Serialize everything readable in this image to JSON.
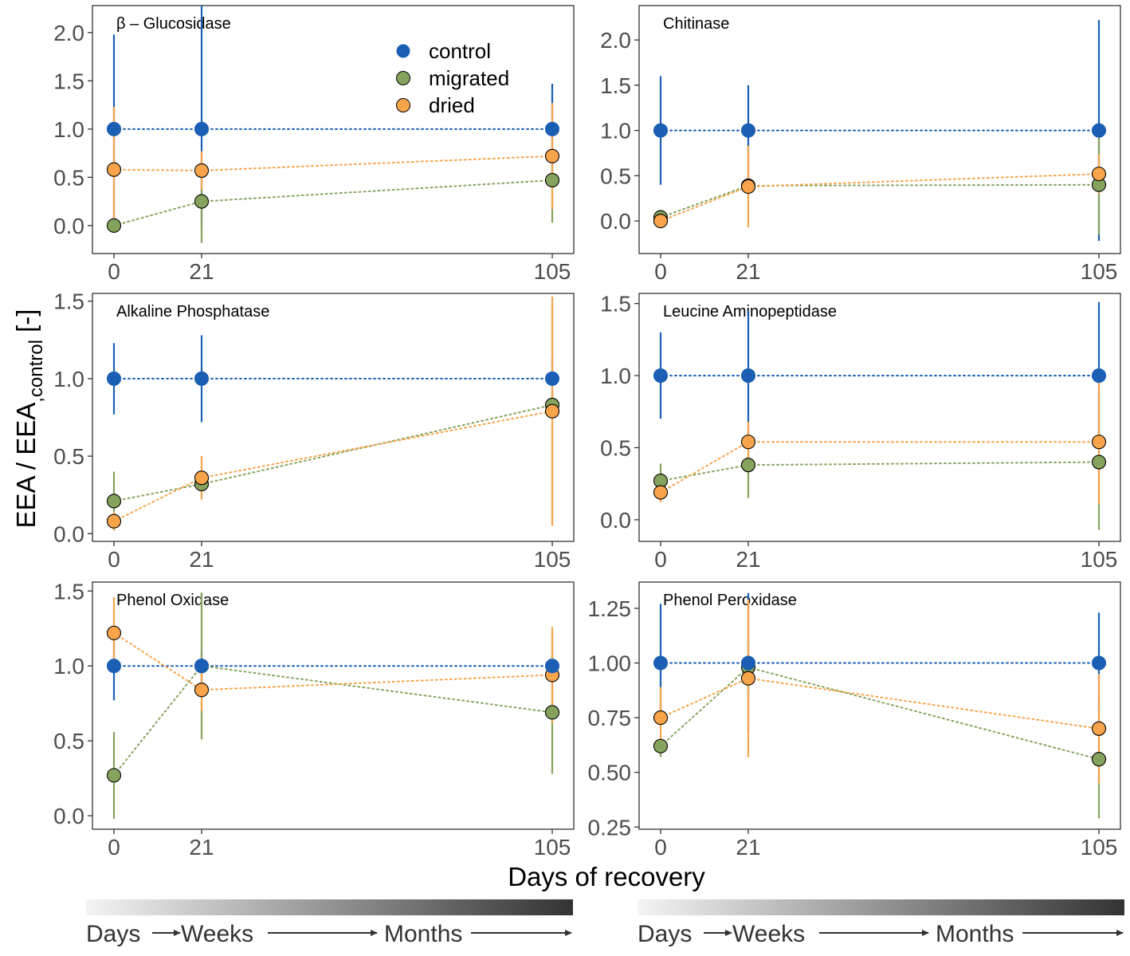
{
  "axes": {
    "xlabel": "Days of recovery",
    "ylabel_main": "EEA / EEA",
    "ylabel_sub": ",control",
    "ylabel_unit": " [-]"
  },
  "legend": {
    "position": "top-right of first panel",
    "items": [
      {
        "key": "control",
        "label": "control",
        "color": "#1a5fb4"
      },
      {
        "key": "migrated",
        "label": "migrated",
        "color": "#86a35d"
      },
      {
        "key": "dried",
        "label": "dried",
        "color": "#f7a44b"
      }
    ]
  },
  "timeline": {
    "days": "Days",
    "weeks": "Weeks",
    "months": "Months"
  },
  "chart_data": [
    {
      "type": "scatter",
      "title": "β – Glucosidase",
      "x": [
        0,
        21,
        105
      ],
      "xticks": [
        "0",
        "21",
        "105"
      ],
      "ylim": [
        -0.29,
        2.28
      ],
      "yticks": [
        0.0,
        0.5,
        1.0,
        1.5,
        2.0
      ],
      "ytick_labels": [
        "0.0",
        "0.5",
        "1.0",
        "1.5",
        "2.0"
      ],
      "series": [
        {
          "name": "control",
          "values": [
            1.0,
            1.0,
            1.0
          ],
          "lower": [
            0.0,
            0.0,
            0.53
          ],
          "upper": [
            1.98,
            2.28,
            1.47
          ]
        },
        {
          "name": "migrated",
          "values": [
            0.0,
            0.25,
            0.47
          ],
          "lower": [
            0.0,
            -0.18,
            0.03
          ],
          "upper": [
            0.0,
            0.65,
            0.9
          ]
        },
        {
          "name": "dried",
          "values": [
            0.58,
            0.57,
            0.72
          ],
          "lower": [
            -0.07,
            0.37,
            0.17
          ],
          "upper": [
            1.23,
            0.77,
            1.27
          ]
        }
      ]
    },
    {
      "type": "scatter",
      "title": "Chitinase",
      "x": [
        0,
        21,
        105
      ],
      "xticks": [
        "0",
        "21",
        "105"
      ],
      "ylim": [
        -0.36,
        2.38
      ],
      "yticks": [
        0.0,
        0.5,
        1.0,
        1.5,
        2.0
      ],
      "ytick_labels": [
        "0.0",
        "0.5",
        "1.0",
        "1.5",
        "2.0"
      ],
      "series": [
        {
          "name": "control",
          "values": [
            1.0,
            1.0,
            1.0
          ],
          "lower": [
            0.4,
            0.5,
            -0.22
          ],
          "upper": [
            1.6,
            1.5,
            2.22
          ]
        },
        {
          "name": "migrated",
          "values": [
            0.04,
            0.39,
            0.4
          ],
          "lower": [
            0.0,
            0.25,
            -0.15
          ],
          "upper": [
            0.08,
            0.53,
            0.95
          ]
        },
        {
          "name": "dried",
          "values": [
            0.0,
            0.38,
            0.52
          ],
          "lower": [
            0.0,
            -0.07,
            0.3
          ],
          "upper": [
            0.0,
            0.83,
            0.74
          ]
        }
      ]
    },
    {
      "type": "scatter",
      "title": "Alkaline Phosphatase",
      "x": [
        0,
        21,
        105
      ],
      "xticks": [
        "0",
        "21",
        "105"
      ],
      "ylim": [
        -0.05,
        1.55
      ],
      "yticks": [
        0.0,
        0.5,
        1.0,
        1.5
      ],
      "ytick_labels": [
        "0.0",
        "0.5",
        "1.0",
        "1.5"
      ],
      "series": [
        {
          "name": "control",
          "values": [
            1.0,
            1.0,
            1.0
          ],
          "lower": [
            0.77,
            0.72,
            0.85
          ],
          "upper": [
            1.23,
            1.28,
            1.15
          ]
        },
        {
          "name": "migrated",
          "values": [
            0.21,
            0.32,
            0.83
          ],
          "lower": [
            0.02,
            0.25,
            0.75
          ],
          "upper": [
            0.4,
            0.39,
            0.91
          ]
        },
        {
          "name": "dried",
          "values": [
            0.08,
            0.36,
            0.79
          ],
          "lower": [
            0.02,
            0.22,
            0.05
          ],
          "upper": [
            0.14,
            0.5,
            1.53
          ]
        }
      ]
    },
    {
      "type": "scatter",
      "title": "Leucine Aminopeptidase",
      "x": [
        0,
        21,
        105
      ],
      "xticks": [
        "0",
        "21",
        "105"
      ],
      "ylim": [
        -0.15,
        1.57
      ],
      "yticks": [
        0.0,
        0.5,
        1.0,
        1.5
      ],
      "ytick_labels": [
        "0.0",
        "0.5",
        "1.0",
        "1.5"
      ],
      "series": [
        {
          "name": "control",
          "values": [
            1.0,
            1.0,
            1.0
          ],
          "lower": [
            0.7,
            0.55,
            0.49
          ],
          "upper": [
            1.3,
            1.45,
            1.51
          ]
        },
        {
          "name": "migrated",
          "values": [
            0.27,
            0.38,
            0.4
          ],
          "lower": [
            0.15,
            0.15,
            -0.07
          ],
          "upper": [
            0.39,
            0.61,
            0.87
          ]
        },
        {
          "name": "dried",
          "values": [
            0.19,
            0.54,
            0.54
          ],
          "lower": [
            0.12,
            0.4,
            0.11
          ],
          "upper": [
            0.26,
            0.68,
            0.97
          ]
        }
      ]
    },
    {
      "type": "scatter",
      "title": "Phenol Oxidase",
      "x": [
        0,
        21,
        105
      ],
      "xticks": [
        "0",
        "21",
        "105"
      ],
      "ylim": [
        -0.09,
        1.56
      ],
      "yticks": [
        0.0,
        0.5,
        1.0,
        1.5
      ],
      "ytick_labels": [
        "0.0",
        "0.5",
        "1.0",
        "1.5"
      ],
      "series": [
        {
          "name": "control",
          "values": [
            1.0,
            1.0,
            1.0
          ],
          "lower": [
            0.77,
            0.9,
            0.93
          ],
          "upper": [
            1.23,
            1.1,
            1.07
          ]
        },
        {
          "name": "migrated",
          "values": [
            0.27,
            1.0,
            0.69
          ],
          "lower": [
            -0.02,
            0.51,
            0.28
          ],
          "upper": [
            0.56,
            1.49,
            1.1
          ]
        },
        {
          "name": "dried",
          "values": [
            1.22,
            0.84,
            0.94
          ],
          "lower": [
            0.98,
            0.7,
            0.62
          ],
          "upper": [
            1.46,
            0.98,
            1.26
          ]
        }
      ]
    },
    {
      "type": "scatter",
      "title": "Phenol Peroxidase",
      "x": [
        0,
        21,
        105
      ],
      "xticks": [
        "0",
        "21",
        "105"
      ],
      "ylim": [
        0.24,
        1.37
      ],
      "yticks": [
        0.25,
        0.5,
        0.75,
        1.0,
        1.25
      ],
      "ytick_labels": [
        "0.25",
        "0.50",
        "0.75",
        "1.00",
        "1.25"
      ],
      "series": [
        {
          "name": "control",
          "values": [
            1.0,
            1.0,
            1.0
          ],
          "lower": [
            0.73,
            0.68,
            0.77
          ],
          "upper": [
            1.27,
            1.32,
            1.23
          ]
        },
        {
          "name": "migrated",
          "values": [
            0.62,
            0.98,
            0.56
          ],
          "lower": [
            0.57,
            0.86,
            0.29
          ],
          "upper": [
            0.67,
            1.1,
            0.83
          ]
        },
        {
          "name": "dried",
          "values": [
            0.75,
            0.93,
            0.7
          ],
          "lower": [
            0.61,
            0.57,
            0.45
          ],
          "upper": [
            0.89,
            1.29,
            0.95
          ]
        }
      ]
    }
  ]
}
